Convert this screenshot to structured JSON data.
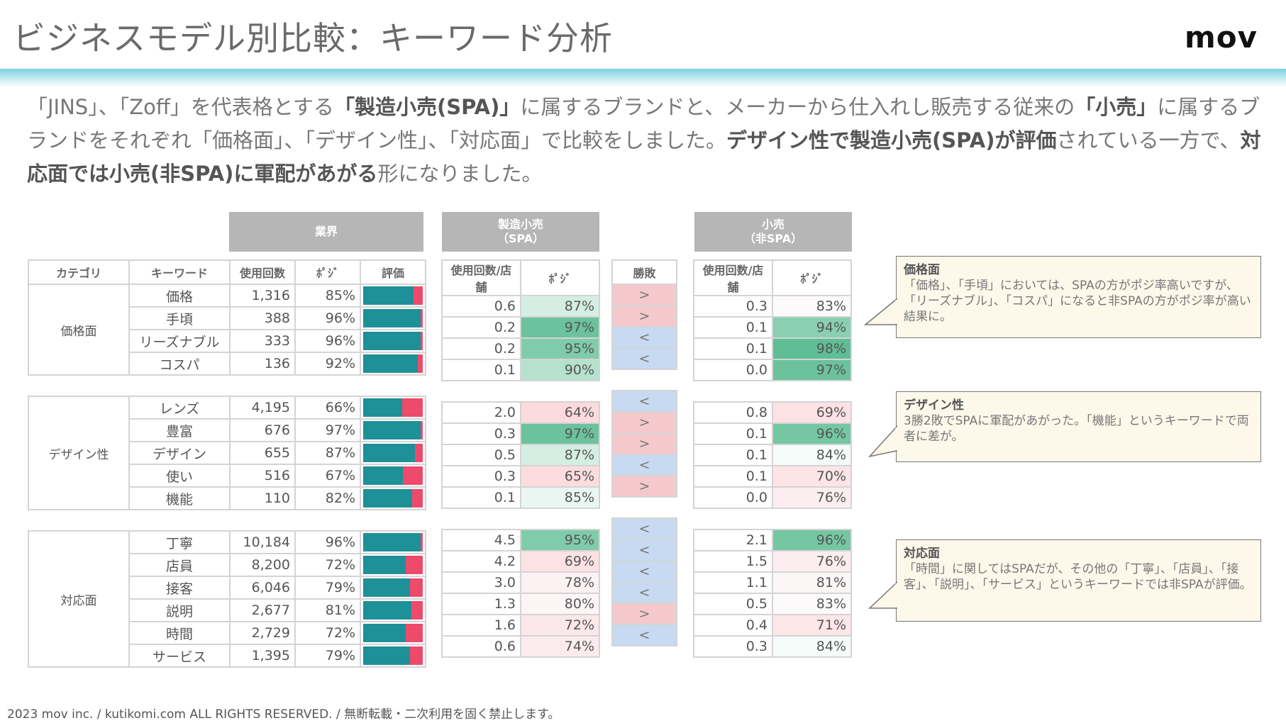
{
  "header": {
    "title": "ビジネスモデル別比較：キーワード分析",
    "logo": "mov"
  },
  "intro": {
    "segments": [
      {
        "text": "「JINS」、「Zoff」を代表格とする",
        "bold": false
      },
      {
        "text": "「製造小売(SPA)」",
        "bold": true
      },
      {
        "text": "に属するブランドと、メーカーから仕入れし販売する従来の",
        "bold": false
      },
      {
        "text": "「小売」",
        "bold": true
      },
      {
        "text": "に属するブランドをそれぞれ「価格面」、「デザイン性」、「対応面」で比較をしました。",
        "bold": false
      },
      {
        "text": "デザイン性で製造小売(SPA)が評価",
        "bold": true
      },
      {
        "text": "されている一方で、",
        "bold": false
      },
      {
        "text": "対応面では小売(非SPA)に軍配があがる",
        "bold": true
      },
      {
        "text": "形になりました。",
        "bold": false
      }
    ]
  },
  "group_headers": {
    "industry": "業界",
    "spa": "製造小売\n（SPA）",
    "non_spa": "小売\n（非SPA）"
  },
  "columns": {
    "category": "カテゴリ",
    "keyword": "キーワード",
    "count": "使用回数",
    "posi": "ﾎﾟｼﾞ",
    "rating": "評価",
    "per_store": "使用回数/店舗",
    "result": "勝敗"
  },
  "colors": {
    "positive_bar": "#1e9098",
    "negative_bar": "#ee4a6c",
    "win_spa": "#f5c9cb",
    "win_non_spa": "#c7daf2",
    "header_gray": "#b6b6b6"
  },
  "groups": [
    {
      "category": "価格面",
      "rows": [
        {
          "keyword": "価格",
          "count": "1,316",
          "posi": "85%",
          "posi_value": 85,
          "spa_per_store": "0.6",
          "spa_posi": "87%",
          "spa_posi_value": 87,
          "result": ">",
          "non_per_store": "0.3",
          "non_posi": "83%",
          "non_posi_value": 83
        },
        {
          "keyword": "手頃",
          "count": "388",
          "posi": "96%",
          "posi_value": 96,
          "spa_per_store": "0.2",
          "spa_posi": "97%",
          "spa_posi_value": 97,
          "result": ">",
          "non_per_store": "0.1",
          "non_posi": "94%",
          "non_posi_value": 94
        },
        {
          "keyword": "リーズナブル",
          "count": "333",
          "posi": "96%",
          "posi_value": 96,
          "spa_per_store": "0.2",
          "spa_posi": "95%",
          "spa_posi_value": 95,
          "result": "<",
          "non_per_store": "0.1",
          "non_posi": "98%",
          "non_posi_value": 98
        },
        {
          "keyword": "コスパ",
          "count": "136",
          "posi": "92%",
          "posi_value": 92,
          "spa_per_store": "0.1",
          "spa_posi": "90%",
          "spa_posi_value": 90,
          "result": "<",
          "non_per_store": "0.0",
          "non_posi": "97%",
          "non_posi_value": 97
        }
      ]
    },
    {
      "category": "デザイン性",
      "rows": [
        {
          "keyword": "レンズ",
          "count": "4,195",
          "posi": "66%",
          "posi_value": 66,
          "spa_per_store": "2.0",
          "spa_posi": "64%",
          "spa_posi_value": 64,
          "result": "<",
          "non_per_store": "0.8",
          "non_posi": "69%",
          "non_posi_value": 69
        },
        {
          "keyword": "豊富",
          "count": "676",
          "posi": "97%",
          "posi_value": 97,
          "spa_per_store": "0.3",
          "spa_posi": "97%",
          "spa_posi_value": 97,
          "result": ">",
          "non_per_store": "0.1",
          "non_posi": "96%",
          "non_posi_value": 96
        },
        {
          "keyword": "デザイン",
          "count": "655",
          "posi": "87%",
          "posi_value": 87,
          "spa_per_store": "0.5",
          "spa_posi": "87%",
          "spa_posi_value": 87,
          "result": ">",
          "non_per_store": "0.1",
          "non_posi": "84%",
          "non_posi_value": 84
        },
        {
          "keyword": "使い",
          "count": "516",
          "posi": "67%",
          "posi_value": 67,
          "spa_per_store": "0.3",
          "spa_posi": "65%",
          "spa_posi_value": 65,
          "result": "<",
          "non_per_store": "0.1",
          "non_posi": "70%",
          "non_posi_value": 70
        },
        {
          "keyword": "機能",
          "count": "110",
          "posi": "82%",
          "posi_value": 82,
          "spa_per_store": "0.1",
          "spa_posi": "85%",
          "spa_posi_value": 85,
          "result": ">",
          "non_per_store": "0.0",
          "non_posi": "76%",
          "non_posi_value": 76
        }
      ]
    },
    {
      "category": "対応面",
      "rows": [
        {
          "keyword": "丁寧",
          "count": "10,184",
          "posi": "96%",
          "posi_value": 96,
          "spa_per_store": "4.5",
          "spa_posi": "95%",
          "spa_posi_value": 95,
          "result": "<",
          "non_per_store": "2.1",
          "non_posi": "96%",
          "non_posi_value": 96
        },
        {
          "keyword": "店員",
          "count": "8,200",
          "posi": "72%",
          "posi_value": 72,
          "spa_per_store": "4.2",
          "spa_posi": "69%",
          "spa_posi_value": 69,
          "result": "<",
          "non_per_store": "1.5",
          "non_posi": "76%",
          "non_posi_value": 76
        },
        {
          "keyword": "接客",
          "count": "6,046",
          "posi": "79%",
          "posi_value": 79,
          "spa_per_store": "3.0",
          "spa_posi": "78%",
          "spa_posi_value": 78,
          "result": "<",
          "non_per_store": "1.1",
          "non_posi": "81%",
          "non_posi_value": 81
        },
        {
          "keyword": "説明",
          "count": "2,677",
          "posi": "81%",
          "posi_value": 81,
          "spa_per_store": "1.3",
          "spa_posi": "80%",
          "spa_posi_value": 80,
          "result": "<",
          "non_per_store": "0.5",
          "non_posi": "83%",
          "non_posi_value": 83
        },
        {
          "keyword": "時間",
          "count": "2,729",
          "posi": "72%",
          "posi_value": 72,
          "spa_per_store": "1.6",
          "spa_posi": "72%",
          "spa_posi_value": 72,
          "result": ">",
          "non_per_store": "0.4",
          "non_posi": "71%",
          "non_posi_value": 71
        },
        {
          "keyword": "サービス",
          "count": "1,395",
          "posi": "79%",
          "posi_value": 79,
          "spa_per_store": "0.6",
          "spa_posi": "74%",
          "spa_posi_value": 74,
          "result": "<",
          "non_per_store": "0.3",
          "non_posi": "84%",
          "non_posi_value": 84
        }
      ]
    }
  ],
  "callouts": [
    {
      "title": "価格面",
      "body": "「価格」、「手頃」においては、SPAの方がポジ率高いですが、「リーズナブル」、「コスパ」になると非SPAの方がポジ率が高い結果に。"
    },
    {
      "title": "デザイン性",
      "body": "3勝2敗でSPAに軍配があがった。「機能」というキーワードで両者に差が。"
    },
    {
      "title": "対応面",
      "body": "「時間」に関してはSPAだが、その他の「丁寧」、「店員」、「接客」、「説明」、「サービス」というキーワードでは非SPAが評価。"
    }
  ],
  "footer": "2023 mov inc. / kutikomi.com ALL RIGHTS RESERVED. / 無断転載・二次利用を固く禁止します。"
}
